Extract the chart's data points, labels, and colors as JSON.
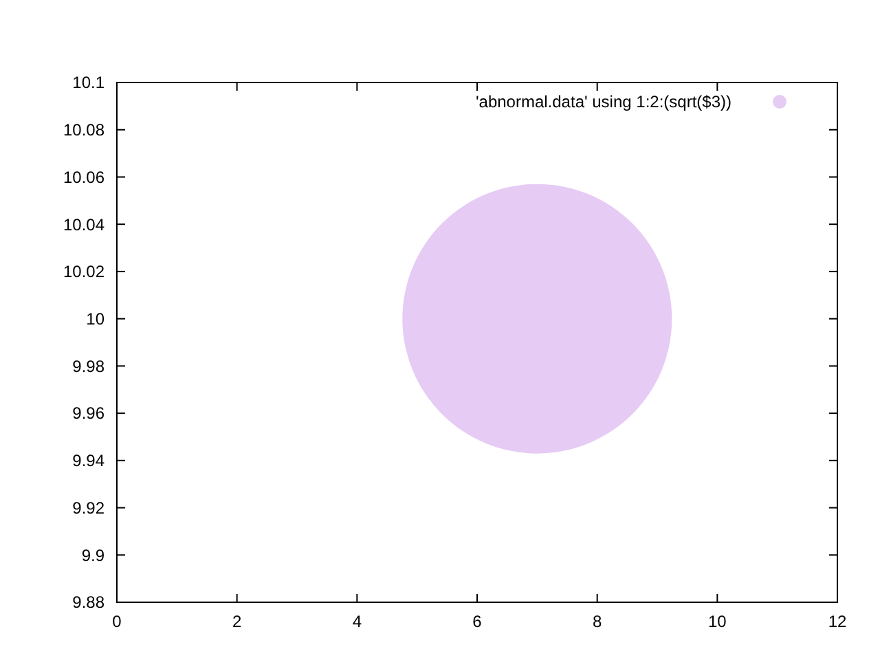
{
  "chart_data": {
    "type": "bubble",
    "series": [
      {
        "name": "'abnormal.data' using 1:2:(sqrt($3))",
        "color": "#e6cbf4",
        "x": [
          7
        ],
        "values": [
          10
        ],
        "sizes": [
          1
        ]
      }
    ],
    "xlim": [
      0,
      12
    ],
    "xticks": [
      0,
      2,
      4,
      6,
      8,
      10,
      12
    ],
    "ylim": [
      9.88,
      10.1
    ],
    "yticks": [
      9.88,
      9.9,
      9.92,
      9.94,
      9.96,
      9.98,
      10,
      10.02,
      10.04,
      10.06,
      10.08,
      10.1
    ],
    "legend": "top right",
    "grid": false
  }
}
